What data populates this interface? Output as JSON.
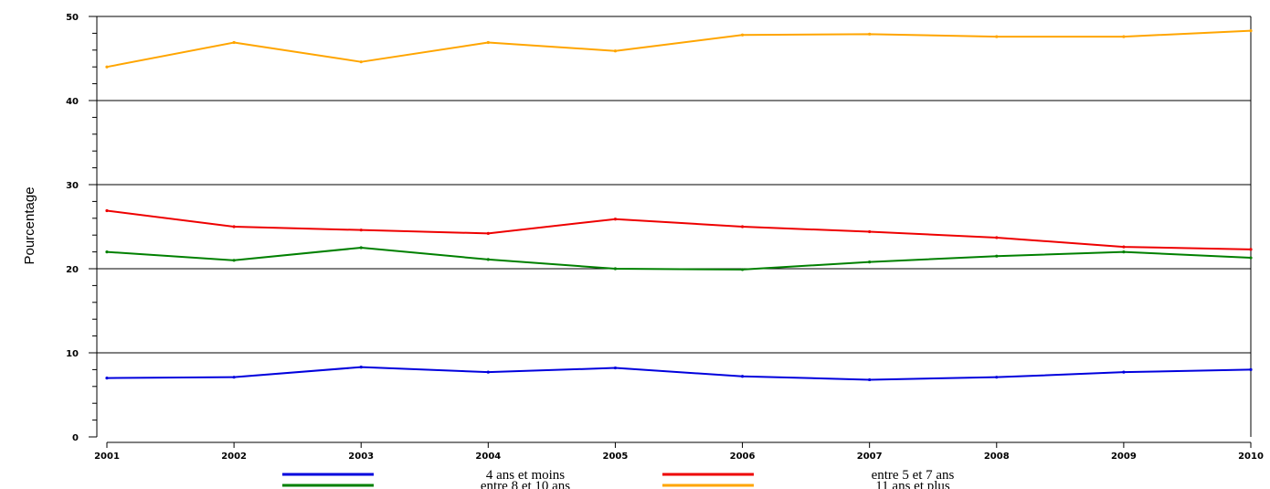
{
  "chart_data": {
    "type": "line",
    "title": "",
    "xlabel": "",
    "ylabel": "Pourcentage",
    "x": [
      2001,
      2002,
      2003,
      2004,
      2005,
      2006,
      2007,
      2008,
      2009,
      2010
    ],
    "ylim": [
      0,
      50
    ],
    "yticks": [
      0,
      10,
      20,
      30,
      40,
      50
    ],
    "grid": true,
    "legend_position": "bottom",
    "series": [
      {
        "name": "4 ans et moins",
        "color": "#0000dd",
        "values": [
          7.0,
          7.1,
          8.3,
          7.7,
          8.2,
          7.2,
          6.8,
          7.1,
          7.7,
          8.0
        ]
      },
      {
        "name": "entre 5 et 7 ans",
        "color": "#ee0000",
        "values": [
          26.9,
          25.0,
          24.6,
          24.2,
          25.9,
          25.0,
          24.4,
          23.7,
          22.6,
          22.3
        ]
      },
      {
        "name": "entre 8 et 10 ans",
        "color": "#008000",
        "values": [
          22.0,
          21.0,
          22.5,
          21.1,
          20.0,
          19.9,
          20.8,
          21.5,
          22.0,
          21.3
        ]
      },
      {
        "name": "11 ans et plus",
        "color": "#ffa500",
        "values": [
          44.0,
          46.9,
          44.6,
          46.9,
          45.9,
          47.8,
          47.9,
          47.6,
          47.6,
          48.3
        ]
      }
    ]
  }
}
